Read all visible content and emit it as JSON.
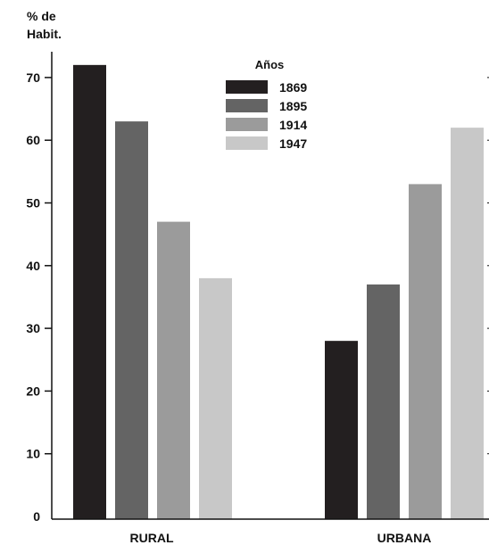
{
  "chart_data": {
    "type": "bar",
    "ylabel_line1": "% de",
    "ylabel_line2": "Habit.",
    "categories": [
      "RURAL",
      "URBANA"
    ],
    "legend_title": "Años",
    "legend_placement": "top-center",
    "ylim": [
      0,
      70
    ],
    "yticks": [
      "0",
      "10",
      "20",
      "30",
      "40",
      "50",
      "60",
      "70"
    ],
    "grid": false,
    "series": [
      {
        "name": "1869",
        "color": "#231f20",
        "values": [
          72,
          28
        ]
      },
      {
        "name": "1895",
        "color": "#646464",
        "values": [
          63,
          37
        ]
      },
      {
        "name": "1914",
        "color": "#9b9b9b",
        "values": [
          47,
          53
        ]
      },
      {
        "name": "1947",
        "color": "#c8c8c8",
        "values": [
          38,
          62
        ]
      }
    ]
  }
}
